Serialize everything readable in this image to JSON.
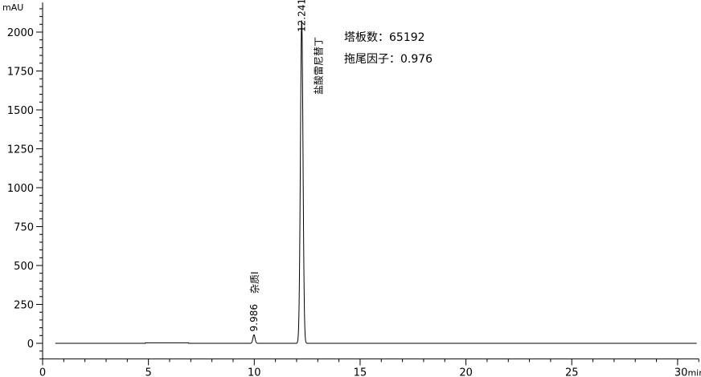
{
  "chart_data": {
    "type": "line",
    "title": "",
    "xlabel": "",
    "ylabel": "",
    "x_unit": "min",
    "y_unit": "mAU",
    "xlim": [
      0,
      31
    ],
    "ylim": [
      -100,
      2190
    ],
    "x_ticks": [
      0,
      5,
      10,
      15,
      20,
      25,
      30
    ],
    "x_tick_labels": [
      "0",
      "5",
      "10",
      "15",
      "20",
      "25",
      "30min"
    ],
    "y_ticks": [
      0,
      250,
      500,
      750,
      1000,
      1250,
      1500,
      1750,
      2000
    ],
    "y_tick_labels": [
      "0",
      "250",
      "500",
      "750",
      "1000",
      "1250",
      "1500",
      "1750",
      "2000"
    ],
    "grid": false,
    "line_color": "#000000",
    "peaks": [
      {
        "retention_time": 9.986,
        "rt_label": "9.986",
        "name": "杂质I",
        "height": 55,
        "sigma_min": 0.05
      },
      {
        "retention_time": 12.241,
        "rt_label": "12.241",
        "name": "盐酸雷尼替丁",
        "height": 2075,
        "sigma_min": 0.06
      }
    ],
    "annotations": [
      "塔板数：65192",
      "拖尾因子：0.976"
    ]
  }
}
